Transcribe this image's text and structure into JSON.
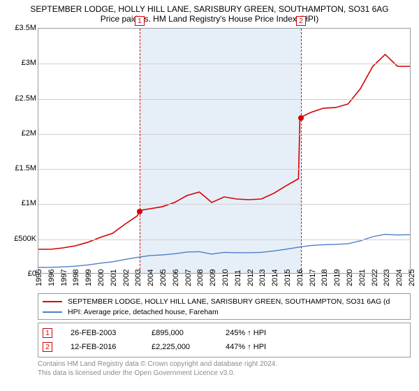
{
  "title": "SEPTEMBER LODGE, HOLLY HILL LANE, SARISBURY GREEN, SOUTHAMPTON, SO31 6AG",
  "subtitle": "Price paid vs. HM Land Registry's House Price Index (HPI)",
  "chart": {
    "type": "line",
    "x_range": [
      1995,
      2025
    ],
    "y_range": [
      0,
      3500000
    ],
    "y_ticks": [
      0,
      500000,
      1000000,
      1500000,
      2000000,
      2500000,
      3000000,
      3500000
    ],
    "y_tick_labels": [
      "£0",
      "£500K",
      "£1M",
      "£1.5M",
      "£2M",
      "£2.5M",
      "£3M",
      "£3.5M"
    ],
    "x_ticks": [
      1995,
      1996,
      1997,
      1998,
      1999,
      2000,
      2001,
      2002,
      2003,
      2004,
      2005,
      2006,
      2007,
      2008,
      2009,
      2010,
      2011,
      2012,
      2013,
      2014,
      2015,
      2016,
      2017,
      2018,
      2019,
      2020,
      2021,
      2022,
      2023,
      2024,
      2025
    ],
    "grid_color": "#d0d0d0",
    "border_color": "#9a9a9a",
    "background_color": "#ffffff",
    "shade_color": "#e6eef7",
    "shade_from": 2003.15,
    "shade_to": 2016.12,
    "series": [
      {
        "id": "property",
        "label": "SEPTEMBER LODGE, HOLLY HILL LANE, SARISBURY GREEN, SOUTHAMPTON, SO31 6AG (detached)",
        "color": "#d40000",
        "width": 1.6,
        "points": [
          [
            1995,
            340000
          ],
          [
            1996,
            340000
          ],
          [
            1997,
            360000
          ],
          [
            1998,
            390000
          ],
          [
            1999,
            440000
          ],
          [
            2000,
            510000
          ],
          [
            2001,
            570000
          ],
          [
            2002,
            700000
          ],
          [
            2003,
            820000
          ],
          [
            2003.15,
            895000
          ],
          [
            2004,
            920000
          ],
          [
            2005,
            950000
          ],
          [
            2006,
            1010000
          ],
          [
            2007,
            1110000
          ],
          [
            2008,
            1160000
          ],
          [
            2009,
            1010000
          ],
          [
            2010,
            1090000
          ],
          [
            2011,
            1060000
          ],
          [
            2012,
            1050000
          ],
          [
            2013,
            1060000
          ],
          [
            2014,
            1140000
          ],
          [
            2015,
            1250000
          ],
          [
            2016,
            1350000
          ],
          [
            2016.12,
            2225000
          ],
          [
            2017,
            2300000
          ],
          [
            2018,
            2360000
          ],
          [
            2019,
            2370000
          ],
          [
            2020,
            2420000
          ],
          [
            2021,
            2640000
          ],
          [
            2022,
            2960000
          ],
          [
            2023,
            3130000
          ],
          [
            2024,
            2960000
          ],
          [
            2025,
            2960000
          ]
        ],
        "markers": [
          {
            "x": 2003.15,
            "y": 895000
          },
          {
            "x": 2016.12,
            "y": 2225000
          }
        ]
      },
      {
        "id": "hpi",
        "label": "HPI: Average price, detached house, Fareham",
        "color": "#4a7ec8",
        "width": 1.4,
        "points": [
          [
            1995,
            80000
          ],
          [
            1996,
            82000
          ],
          [
            1997,
            88000
          ],
          [
            1998,
            98000
          ],
          [
            1999,
            115000
          ],
          [
            2000,
            140000
          ],
          [
            2001,
            160000
          ],
          [
            2002,
            195000
          ],
          [
            2003,
            225000
          ],
          [
            2004,
            250000
          ],
          [
            2005,
            260000
          ],
          [
            2006,
            275000
          ],
          [
            2007,
            300000
          ],
          [
            2008,
            305000
          ],
          [
            2009,
            270000
          ],
          [
            2010,
            295000
          ],
          [
            2011,
            290000
          ],
          [
            2012,
            290000
          ],
          [
            2013,
            295000
          ],
          [
            2014,
            315000
          ],
          [
            2015,
            340000
          ],
          [
            2016,
            370000
          ],
          [
            2017,
            395000
          ],
          [
            2018,
            405000
          ],
          [
            2019,
            410000
          ],
          [
            2020,
            420000
          ],
          [
            2021,
            460000
          ],
          [
            2022,
            520000
          ],
          [
            2023,
            555000
          ],
          [
            2024,
            545000
          ],
          [
            2025,
            550000
          ]
        ]
      }
    ],
    "event_markers": [
      {
        "n": "1",
        "x": 2003.15
      },
      {
        "n": "2",
        "x": 2016.12
      }
    ]
  },
  "legend": {
    "rows": [
      {
        "color": "#d40000",
        "label": "SEPTEMBER LODGE, HOLLY HILL LANE, SARISBURY GREEN, SOUTHAMPTON, SO31 6AG (d"
      },
      {
        "color": "#4a7ec8",
        "label": "HPI: Average price, detached house, Fareham"
      }
    ]
  },
  "events": [
    {
      "n": "1",
      "date": "26-FEB-2003",
      "price": "£895,000",
      "pct": "245% ↑ HPI"
    },
    {
      "n": "2",
      "date": "12-FEB-2016",
      "price": "£2,225,000",
      "pct": "447% ↑ HPI"
    }
  ],
  "license_l1": "Contains HM Land Registry data © Crown copyright and database right 2024.",
  "license_l2": "This data is licensed under the Open Government Licence v3.0."
}
